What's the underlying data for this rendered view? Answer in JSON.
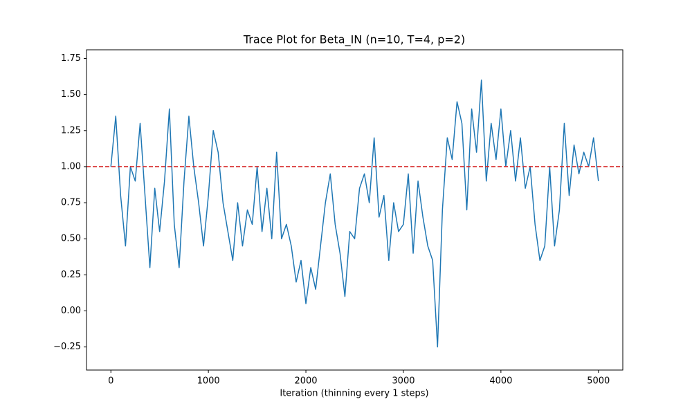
{
  "chart_data": {
    "type": "line",
    "title": "Trace Plot for Beta_IN (n=10, T=4, p=2)",
    "x_label": "Iteration (thinning every 1 steps)",
    "x": [
      0,
      50,
      100,
      150,
      200,
      250,
      300,
      350,
      400,
      450,
      500,
      550,
      600,
      650,
      700,
      750,
      800,
      850,
      900,
      950,
      1000,
      1050,
      1100,
      1150,
      1200,
      1250,
      1300,
      1350,
      1400,
      1450,
      1500,
      1550,
      1600,
      1650,
      1700,
      1750,
      1800,
      1850,
      1900,
      1950,
      2000,
      2050,
      2100,
      2150,
      2200,
      2250,
      2300,
      2350,
      2400,
      2450,
      2500,
      2550,
      2600,
      2650,
      2700,
      2750,
      2800,
      2850,
      2900,
      2950,
      3000,
      3050,
      3100,
      3150,
      3200,
      3250,
      3300,
      3350,
      3400,
      3450,
      3500,
      3550,
      3600,
      3650,
      3700,
      3750,
      3800,
      3850,
      3900,
      3950,
      4000,
      4050,
      4100,
      4150,
      4200,
      4250,
      4300,
      4350,
      4400,
      4450,
      4500,
      4550,
      4600,
      4650,
      4700,
      4750,
      4800,
      4850,
      4900,
      4950,
      5000
    ],
    "series": [
      {
        "name": "Beta_IN",
        "color": "#1f77b4",
        "values": [
          1.0,
          1.35,
          0.8,
          0.45,
          1.0,
          0.9,
          1.3,
          0.8,
          0.3,
          0.85,
          0.55,
          0.9,
          1.4,
          0.6,
          0.3,
          0.9,
          1.35,
          1.0,
          0.75,
          0.45,
          0.8,
          1.25,
          1.1,
          0.75,
          0.55,
          0.35,
          0.75,
          0.45,
          0.7,
          0.6,
          1.0,
          0.55,
          0.85,
          0.5,
          1.1,
          0.5,
          0.6,
          0.45,
          0.2,
          0.35,
          0.05,
          0.3,
          0.15,
          0.45,
          0.75,
          0.95,
          0.6,
          0.4,
          0.1,
          0.55,
          0.5,
          0.85,
          0.95,
          0.75,
          1.2,
          0.65,
          0.8,
          0.35,
          0.75,
          0.55,
          0.6,
          0.95,
          0.4,
          0.9,
          0.65,
          0.45,
          0.35,
          -0.25,
          0.7,
          1.2,
          1.05,
          1.45,
          1.3,
          0.7,
          1.4,
          1.1,
          1.6,
          0.9,
          1.3,
          1.05,
          1.4,
          1.0,
          1.25,
          0.9,
          1.2,
          0.85,
          1.0,
          0.6,
          0.35,
          0.45,
          1.0,
          0.45,
          0.7,
          1.3,
          0.8,
          1.15,
          0.95,
          1.1,
          1.0,
          1.2,
          0.9
        ]
      }
    ],
    "reference_line": {
      "value": 1,
      "color": "#d62728",
      "style": "dashed"
    },
    "xlim": [
      -250,
      5250
    ],
    "ylim": [
      -0.41,
      1.81
    ],
    "xticks": [
      0,
      1000,
      2000,
      3000,
      4000,
      5000
    ],
    "yticks": [
      {
        "value": -0.25,
        "label": "−0.25"
      },
      {
        "value": 0,
        "label": "0.00"
      },
      {
        "value": 0.25,
        "label": "0.25"
      },
      {
        "value": 0.5,
        "label": "0.50"
      },
      {
        "value": 0.75,
        "label": "0.75"
      },
      {
        "value": 1,
        "label": "1.00"
      },
      {
        "value": 1.25,
        "label": "1.25"
      },
      {
        "value": 1.5,
        "label": "1.50"
      },
      {
        "value": 1.75,
        "label": "1.75"
      }
    ],
    "grid": false
  }
}
